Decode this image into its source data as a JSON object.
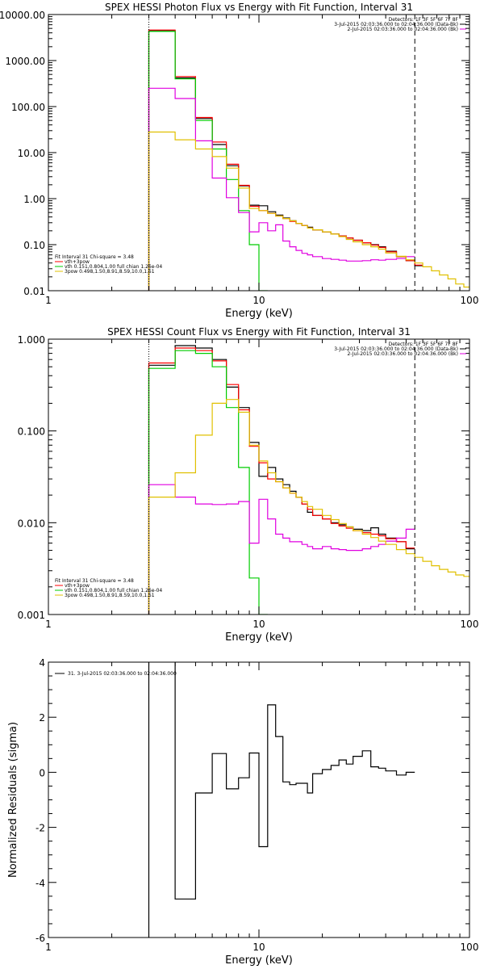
{
  "chart_data": [
    {
      "id": "photon",
      "type": "line",
      "title": "SPEX HESSI Photon Flux vs Energy with Fit Function, Interval 31",
      "xlabel": "Energy (keV)",
      "ylabel": "",
      "xscale": "log",
      "yscale": "log",
      "xlim": [
        1,
        100
      ],
      "ylim": [
        0.01,
        10000
      ],
      "xticks": [
        1,
        10,
        100
      ],
      "yticks": [
        0.01,
        0.1,
        1,
        10,
        100,
        1000,
        10000
      ],
      "yticklabels": [
        "0.01",
        "0.10",
        "1.00",
        "10.00",
        "100.00",
        "1000.00",
        "10000.00"
      ],
      "vlines": [
        {
          "x": 3,
          "style": "dotted"
        },
        {
          "x": 55,
          "style": "dashed"
        }
      ],
      "header_lines": [
        "Detectors: 1F 3F 5F 6F 7F 8F",
        "3-Jul-2015 02:03:36.000 to 02:04:36.000 (Data-Bk)",
        "2-Jul-2015 02:03:36.000 to 02:04:36.000 (Bk)"
      ],
      "legend_lines": [
        "Fit Interval 31    Chi-square = 3.48",
        "vth+3pow",
        "vth 0.151,0.804,1.00  full chian 1.26e-04",
        "3pow 0.498,1.50,8.91,8.59,10.0,1.51"
      ],
      "edges": [
        3,
        4,
        5,
        6,
        7,
        8,
        9,
        10,
        11,
        12,
        13,
        14,
        15,
        16,
        17,
        18,
        20,
        22,
        24,
        26,
        28,
        31,
        34,
        37,
        40,
        45,
        50,
        55,
        60,
        66,
        72,
        79,
        86,
        94,
        100
      ],
      "series": [
        {
          "color": "#000000",
          "values": [
            4500,
            420,
            55,
            15,
            5.2,
            1.9,
            0.72,
            0.7,
            0.52,
            0.44,
            0.38,
            0.33,
            0.29,
            0.26,
            0.24,
            0.21,
            0.19,
            0.17,
            0.155,
            0.14,
            0.125,
            0.11,
            0.1,
            0.09,
            0.072,
            0.055,
            0.045,
            0.035
          ]
        },
        {
          "color": "#ff0000",
          "values": [
            4600,
            450,
            58,
            17,
            5.6,
            1.95,
            0.68,
            0.55,
            0.48,
            0.42,
            0.37,
            0.32,
            0.29,
            0.26,
            0.23,
            0.21,
            0.19,
            0.17,
            0.155,
            0.14,
            0.125,
            0.11,
            0.098,
            0.087,
            0.07,
            0.055,
            0.045,
            0.036
          ]
        },
        {
          "color": "#00cc00",
          "values": [
            4300,
            400,
            50,
            12,
            2.6,
            0.55,
            0.1,
            0.01
          ]
        },
        {
          "color": "#e000e0",
          "values": [
            250,
            150,
            18,
            2.8,
            1.05,
            0.5,
            0.19,
            0.3,
            0.2,
            0.27,
            0.12,
            0.09,
            0.075,
            0.065,
            0.06,
            0.055,
            0.05,
            0.048,
            0.046,
            0.044,
            0.044,
            0.045,
            0.047,
            0.046,
            0.048,
            0.05,
            0.055
          ]
        },
        {
          "color": "#e0c000",
          "values": [
            28,
            19,
            12,
            8.2,
            4.6,
            1.7,
            0.61,
            0.55,
            0.48,
            0.42,
            0.37,
            0.33,
            0.29,
            0.26,
            0.23,
            0.21,
            0.19,
            0.17,
            0.15,
            0.13,
            0.115,
            0.1,
            0.09,
            0.08,
            0.066,
            0.056,
            0.047,
            0.04,
            0.033,
            0.027,
            0.022,
            0.018,
            0.014,
            0.012
          ]
        }
      ]
    },
    {
      "id": "count",
      "type": "line",
      "title": "SPEX HESSI Count Flux vs Energy with Fit Function, Interval 31",
      "xlabel": "Energy (keV)",
      "ylabel": "",
      "xscale": "log",
      "yscale": "log",
      "xlim": [
        1,
        100
      ],
      "ylim": [
        0.001,
        1
      ],
      "xticks": [
        1,
        10,
        100
      ],
      "yticks": [
        0.001,
        0.01,
        0.1,
        1
      ],
      "yticklabels": [
        "0.001",
        "0.010",
        "0.100",
        "1.000"
      ],
      "vlines": [
        {
          "x": 3,
          "style": "dotted"
        },
        {
          "x": 55,
          "style": "dashed"
        }
      ],
      "header_lines": [
        "Detectors: 1F 3F 5F 6F 7F 8F",
        "3-Jul-2015 02:03:36.000 to 02:04:36.000 (Data-Bk)",
        "2-Jul-2015 02:03:36.000 to 02:04:36.000 (Bk)"
      ],
      "legend_lines": [
        "Fit Interval 31    Chi-square = 3.48",
        "vth+3pow",
        "vth 0.151,0.804,1.00  full chian 1.26e-04",
        "3pow 0.498,1.50,8.91,8.59,10.0,1.51"
      ],
      "edges": [
        3,
        4,
        5,
        6,
        7,
        8,
        9,
        10,
        11,
        12,
        13,
        14,
        15,
        16,
        17,
        18,
        20,
        22,
        24,
        26,
        28,
        31,
        34,
        37,
        40,
        45,
        50,
        55,
        60,
        66,
        72,
        79,
        86,
        94,
        100
      ],
      "series": [
        {
          "color": "#000000",
          "values": [
            0.52,
            0.85,
            0.8,
            0.6,
            0.3,
            0.18,
            0.075,
            0.032,
            0.04,
            0.03,
            0.026,
            0.022,
            0.019,
            0.016,
            0.013,
            0.012,
            0.011,
            0.01,
            0.0095,
            0.009,
            0.0085,
            0.0082,
            0.0088,
            0.0075,
            0.0068,
            0.0062,
            0.0052
          ]
        },
        {
          "color": "#ff0000",
          "values": [
            0.55,
            0.8,
            0.75,
            0.58,
            0.32,
            0.17,
            0.068,
            0.045,
            0.03,
            0.028,
            0.024,
            0.021,
            0.019,
            0.016,
            0.014,
            0.012,
            0.011,
            0.0098,
            0.0092,
            0.0087,
            0.0082,
            0.0078,
            0.0075,
            0.0072,
            0.0067,
            0.0062,
            0.0053
          ]
        },
        {
          "color": "#00cc00",
          "values": [
            0.48,
            0.75,
            0.7,
            0.5,
            0.18,
            0.04,
            0.0025,
            0.0008
          ]
        },
        {
          "color": "#e000e0",
          "values": [
            0.026,
            0.019,
            0.016,
            0.0158,
            0.016,
            0.017,
            0.006,
            0.018,
            0.011,
            0.0075,
            0.0068,
            0.0062,
            0.0062,
            0.0058,
            0.0055,
            0.0052,
            0.0055,
            0.0052,
            0.0051,
            0.005,
            0.005,
            0.0052,
            0.0055,
            0.0058,
            0.0063,
            0.0068,
            0.0085
          ]
        },
        {
          "color": "#e0c000",
          "values": [
            0.019,
            0.035,
            0.09,
            0.2,
            0.22,
            0.16,
            0.07,
            0.047,
            0.035,
            0.028,
            0.024,
            0.021,
            0.019,
            0.017,
            0.015,
            0.014,
            0.012,
            0.0108,
            0.0098,
            0.009,
            0.0082,
            0.0075,
            0.0069,
            0.0063,
            0.0058,
            0.0051,
            0.0046,
            0.0042,
            0.0038,
            0.0034,
            0.0031,
            0.0029,
            0.0027,
            0.0026
          ]
        }
      ]
    },
    {
      "id": "resid",
      "type": "line",
      "title": "",
      "xlabel": "Energy (keV)",
      "ylabel": "Normalized Residuals (sigma)",
      "xscale": "log",
      "yscale": "linear",
      "xlim": [
        1,
        100
      ],
      "ylim": [
        -6,
        4
      ],
      "xticks": [
        1,
        10,
        100
      ],
      "yticks": [
        -6,
        -4,
        -2,
        0,
        2,
        4
      ],
      "yticklabels": [
        "-6",
        "-4",
        "-2",
        "0",
        "2",
        "4"
      ],
      "vlines": [],
      "header_lines": [],
      "legend_lines": [
        "31.  3-Jul-2015 02:03:36.000 to 02:04:36.000"
      ],
      "edges": [
        3,
        4,
        5,
        6,
        7,
        8,
        9,
        10,
        11,
        12,
        13,
        14,
        15,
        16,
        17,
        18,
        20,
        22,
        24,
        26,
        28,
        31,
        34,
        37,
        40,
        45,
        50,
        55
      ],
      "series": [
        {
          "color": "#000000",
          "values": [
            4.1,
            -4.6,
            -0.75,
            0.68,
            -0.6,
            -0.2,
            0.7,
            -2.7,
            2.45,
            1.3,
            -0.35,
            -0.45,
            -0.4,
            -0.4,
            -0.75,
            -0.05,
            0.1,
            0.25,
            0.45,
            0.3,
            0.58,
            0.78,
            0.2,
            0.15,
            0.05,
            -0.1,
            0
          ]
        }
      ]
    }
  ]
}
